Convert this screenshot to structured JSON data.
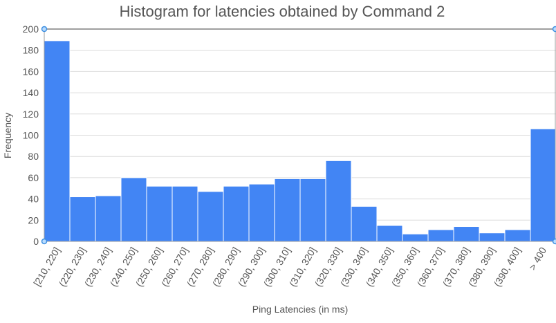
{
  "colors": {
    "bar": "#4285f4",
    "handle_fill": "#b9dcff",
    "handle_stroke": "#3d8fe0"
  },
  "chart_data": {
    "type": "bar",
    "title": "Histogram for latencies obtained by Command 2",
    "xlabel": "Ping Latencies (in ms)",
    "ylabel": "Frequency",
    "categories": [
      "[210, 220]",
      "(220, 230]",
      "(230, 240]",
      "(240, 250]",
      "(250, 260]",
      "(260, 270]",
      "(270, 280]",
      "(280, 290]",
      "(290, 300]",
      "(300, 310]",
      "(310, 320]",
      "(320, 330]",
      "(330, 340]",
      "(340, 350]",
      "(350, 360]",
      "(360, 370]",
      "(370, 380]",
      "(380, 390]",
      "(390, 400]",
      "> 400"
    ],
    "values": [
      189,
      42,
      43,
      60,
      52,
      52,
      47,
      52,
      54,
      59,
      59,
      76,
      33,
      15,
      7,
      11,
      14,
      8,
      11,
      106
    ],
    "ylim": [
      0,
      200
    ],
    "yticks": [
      "0",
      "20",
      "40",
      "60",
      "80",
      "100",
      "120",
      "140",
      "160",
      "180",
      "200"
    ],
    "grid": true,
    "legend": "none"
  }
}
